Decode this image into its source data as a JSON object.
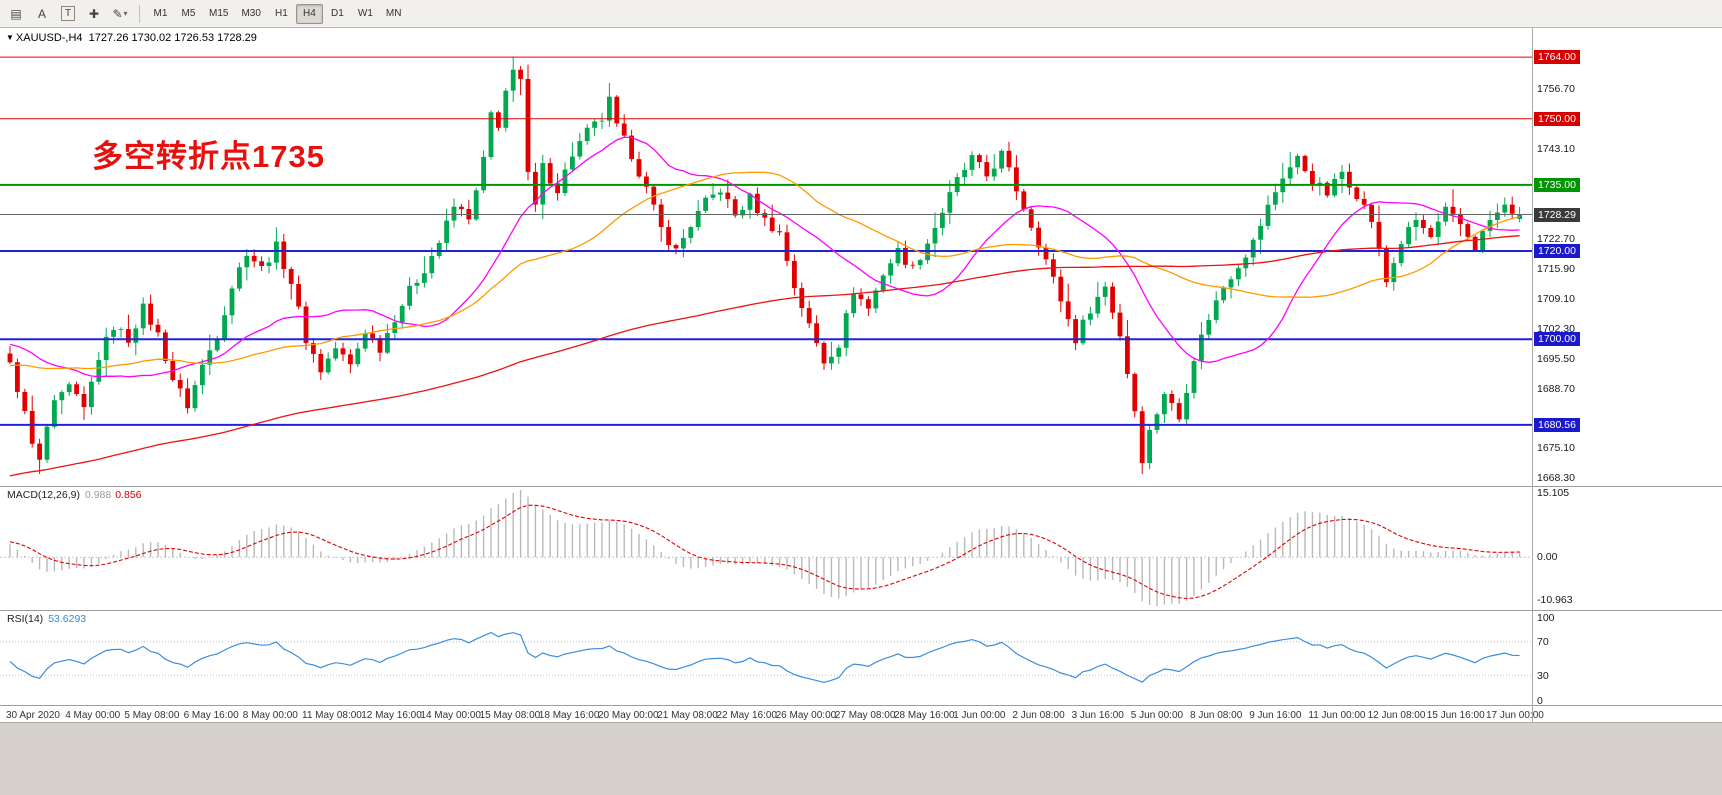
{
  "toolbar": {
    "tools": [
      {
        "name": "charts",
        "glyph": "▤"
      },
      {
        "name": "text",
        "glyph": "A"
      },
      {
        "name": "label",
        "glyph": "T"
      },
      {
        "name": "crosshair",
        "glyph": "✚"
      },
      {
        "name": "draw",
        "glyph": "✎"
      }
    ],
    "timeframes": [
      "M1",
      "M5",
      "M15",
      "M30",
      "H1",
      "H4",
      "D1",
      "W1",
      "MN"
    ],
    "active_timeframe": "H4"
  },
  "chart": {
    "symbol": "XAUUSD-,H4",
    "ohlc_text": "1727.26 1730.02 1726.53 1728.29",
    "annotation": "多空转折点1735",
    "annotation_color": "#e8100c"
  },
  "chart_data": {
    "type": "candlestick",
    "symbol": "XAUUSD",
    "timeframe": "H4",
    "ohlc": {
      "open": 1727.26,
      "high": 1730.02,
      "low": 1726.53,
      "close": 1728.29
    },
    "y_axis": {
      "min": 1666.7,
      "max": 1770.6,
      "ticks": [
        {
          "label": "1756.70",
          "price": 1756.7
        },
        {
          "label": "1743.10",
          "price": 1743.1
        },
        {
          "label": "1722.70",
          "price": 1722.7
        },
        {
          "label": "1715.90",
          "price": 1715.9
        },
        {
          "label": "1709.10",
          "price": 1709.1
        },
        {
          "label": "1702.30",
          "price": 1702.3
        },
        {
          "label": "1695.50",
          "price": 1695.5
        },
        {
          "label": "1688.70",
          "price": 1688.7
        },
        {
          "label": "1675.10",
          "price": 1675.1
        },
        {
          "label": "1668.30",
          "price": 1668.3
        }
      ],
      "badges": [
        {
          "label": "1764.00",
          "price": 1764.0,
          "bg": "#d60000"
        },
        {
          "label": "1750.00",
          "price": 1750.0,
          "bg": "#d60000"
        },
        {
          "label": "1735.00",
          "price": 1735.0,
          "bg": "#009400"
        },
        {
          "label": "1728.29",
          "price": 1728.29,
          "bg": "#3a3a3a"
        },
        {
          "label": "1720.00",
          "price": 1720.0,
          "bg": "#1a1acc"
        },
        {
          "label": "1700.00",
          "price": 1700.0,
          "bg": "#1a1acc"
        },
        {
          "label": "1680.56",
          "price": 1680.56,
          "bg": "#1a1acc"
        }
      ]
    },
    "h_lines": [
      {
        "price": 1764.0,
        "color": "#e00000",
        "width": 1
      },
      {
        "price": 1750.0,
        "color": "#e00000",
        "width": 1
      },
      {
        "price": 1735.0,
        "color": "#009400",
        "width": 2
      },
      {
        "price": 1720.0,
        "color": "#2222dd",
        "width": 2
      },
      {
        "price": 1700.0,
        "color": "#2222dd",
        "width": 2
      },
      {
        "price": 1680.56,
        "color": "#2222dd",
        "width": 2
      }
    ],
    "current_price_line": {
      "price": 1728.29,
      "color": "#666666"
    },
    "bars_total": 205,
    "history": {
      "bars": 160,
      "start": 1630,
      "end": 1703
    },
    "price_path": [
      [
        0,
        1694
      ],
      [
        1,
        1689
      ],
      [
        2,
        1683
      ],
      [
        3,
        1676
      ],
      [
        4,
        1672
      ],
      [
        5,
        1680
      ],
      [
        6,
        1685
      ],
      [
        8,
        1689
      ],
      [
        10,
        1684
      ],
      [
        12,
        1696
      ],
      [
        14,
        1703
      ],
      [
        16,
        1700
      ],
      [
        18,
        1707
      ],
      [
        20,
        1701
      ],
      [
        22,
        1691
      ],
      [
        24,
        1685
      ],
      [
        26,
        1694
      ],
      [
        28,
        1701
      ],
      [
        30,
        1712
      ],
      [
        32,
        1720
      ],
      [
        34,
        1716
      ],
      [
        36,
        1721
      ],
      [
        38,
        1713
      ],
      [
        40,
        1700
      ],
      [
        42,
        1693
      ],
      [
        44,
        1698
      ],
      [
        46,
        1694
      ],
      [
        48,
        1702
      ],
      [
        50,
        1698
      ],
      [
        52,
        1705
      ],
      [
        54,
        1711
      ],
      [
        56,
        1716
      ],
      [
        58,
        1722
      ],
      [
        60,
        1730
      ],
      [
        62,
        1728
      ],
      [
        63,
        1733
      ],
      [
        64,
        1741
      ],
      [
        65,
        1751
      ],
      [
        66,
        1747
      ],
      [
        67,
        1756
      ],
      [
        68,
        1762
      ],
      [
        69,
        1759
      ],
      [
        70,
        1737
      ],
      [
        71,
        1730
      ],
      [
        72,
        1739
      ],
      [
        74,
        1734
      ],
      [
        76,
        1742
      ],
      [
        78,
        1747
      ],
      [
        80,
        1750
      ],
      [
        81,
        1754
      ],
      [
        82,
        1748
      ],
      [
        84,
        1742
      ],
      [
        86,
        1734
      ],
      [
        88,
        1725
      ],
      [
        90,
        1720
      ],
      [
        92,
        1726
      ],
      [
        94,
        1731
      ],
      [
        96,
        1734
      ],
      [
        98,
        1728
      ],
      [
        100,
        1732
      ],
      [
        102,
        1727
      ],
      [
        104,
        1724
      ],
      [
        106,
        1712
      ],
      [
        108,
        1703
      ],
      [
        110,
        1695
      ],
      [
        112,
        1699
      ],
      [
        114,
        1711
      ],
      [
        116,
        1707
      ],
      [
        118,
        1715
      ],
      [
        120,
        1720
      ],
      [
        122,
        1716
      ],
      [
        124,
        1722
      ],
      [
        126,
        1729
      ],
      [
        128,
        1736
      ],
      [
        130,
        1741
      ],
      [
        132,
        1737
      ],
      [
        134,
        1742
      ],
      [
        136,
        1734
      ],
      [
        138,
        1726
      ],
      [
        140,
        1718
      ],
      [
        142,
        1709
      ],
      [
        144,
        1700
      ],
      [
        146,
        1707
      ],
      [
        148,
        1712
      ],
      [
        150,
        1701
      ],
      [
        152,
        1684
      ],
      [
        153,
        1673
      ],
      [
        154,
        1679
      ],
      [
        156,
        1688
      ],
      [
        158,
        1682
      ],
      [
        160,
        1696
      ],
      [
        162,
        1705
      ],
      [
        164,
        1712
      ],
      [
        166,
        1717
      ],
      [
        168,
        1722
      ],
      [
        170,
        1730
      ],
      [
        172,
        1737
      ],
      [
        174,
        1741
      ],
      [
        176,
        1736
      ],
      [
        178,
        1733
      ],
      [
        180,
        1738
      ],
      [
        182,
        1733
      ],
      [
        184,
        1727
      ],
      [
        186,
        1713
      ],
      [
        188,
        1722
      ],
      [
        190,
        1727
      ],
      [
        192,
        1723
      ],
      [
        194,
        1729
      ],
      [
        196,
        1726
      ],
      [
        198,
        1721
      ],
      [
        200,
        1727
      ],
      [
        202,
        1730
      ],
      [
        204,
        1728.29
      ]
    ],
    "overlays": [
      {
        "name": "ma-fast",
        "type": "sma",
        "period": 20,
        "color": "#ff00ff"
      },
      {
        "name": "ma-mid",
        "type": "sma",
        "period": 40,
        "color": "#ff9900"
      },
      {
        "name": "ma-slow",
        "type": "sma",
        "period": 150,
        "color": "#ee1111"
      }
    ],
    "candle_colors": {
      "bull": "#00a94f",
      "bear": "#e00000"
    },
    "macd": {
      "label": "MACD(12,26,9)",
      "value_main": "0.988",
      "value_signal": "0.856",
      "fast": 12,
      "slow": 26,
      "signal": 9,
      "axis": [
        "15.105",
        "0.00",
        "-10.963"
      ],
      "hist_color": "#b9b9b9",
      "signal_color": "#e00000"
    },
    "rsi": {
      "label": "RSI(14)",
      "value": "53.6293",
      "period": 14,
      "axis": [
        "100",
        "70",
        "30",
        "0"
      ],
      "levels": [
        70,
        30
      ],
      "color": "#3b8ede"
    },
    "x_axis": {
      "labels": [
        "30 Apr 2020",
        "4 May 00:00",
        "5 May 08:00",
        "6 May 16:00",
        "8 May 00:00",
        "11 May 08:00",
        "12 May 16:00",
        "14 May 00:00",
        "15 May 08:00",
        "18 May 16:00",
        "20 May 00:00",
        "21 May 08:00",
        "22 May 16:00",
        "26 May 00:00",
        "27 May 08:00",
        "28 May 16:00",
        "1 Jun 00:00",
        "2 Jun 08:00",
        "3 Jun 16:00",
        "5 Jun 00:00",
        "8 Jun 08:00",
        "9 Jun 16:00",
        "11 Jun 00:00",
        "12 Jun 08:00",
        "15 Jun 16:00",
        "17 Jun 00:00"
      ]
    }
  }
}
